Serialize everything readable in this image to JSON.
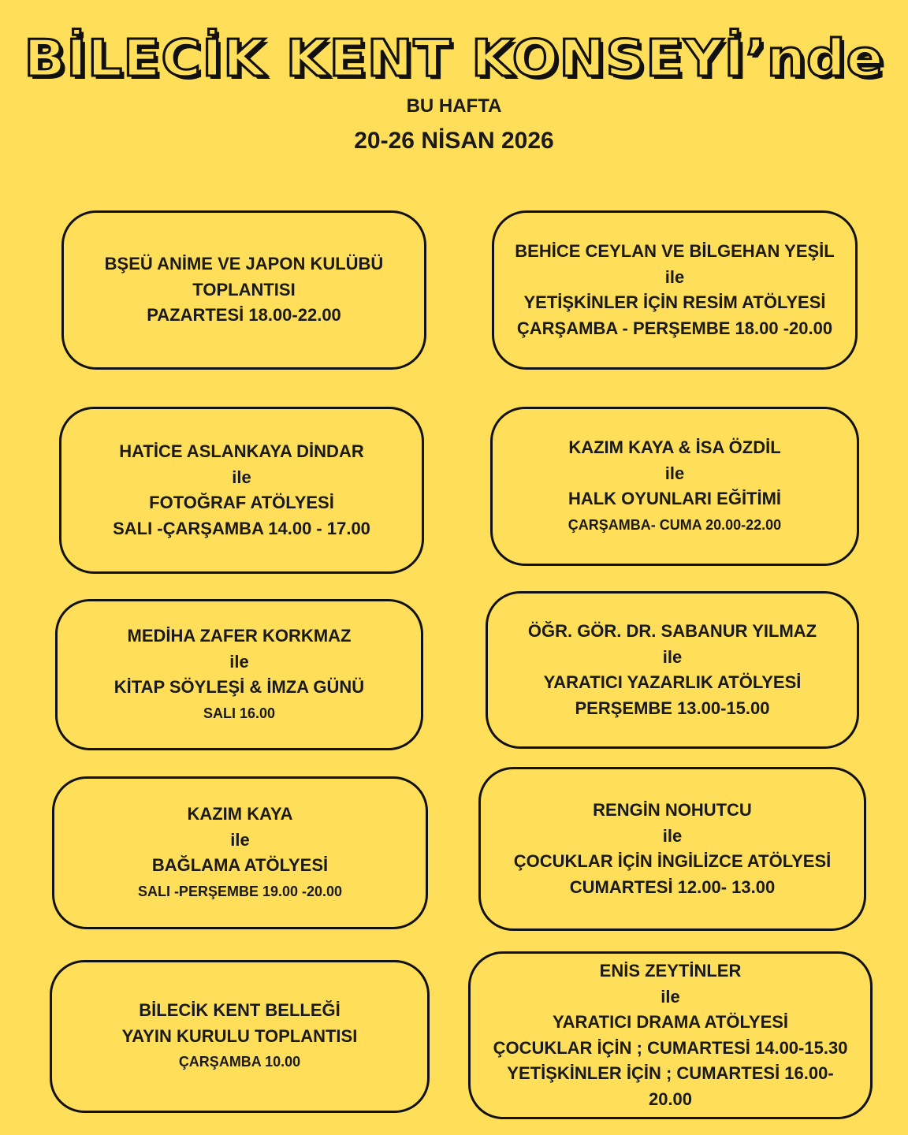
{
  "header": {
    "title": "BİLECİK KENT KONSEYİ’nde",
    "subtitle": "BU HAFTA",
    "date_range": "20-26 NİSAN 2026"
  },
  "background_color": "#FFDE59",
  "events": [
    {
      "lines": [
        "BŞEÜ ANİME VE JAPON KULÜBÜ",
        "TOPLANTISI",
        "PAZARTESİ 18.00-22.00"
      ]
    },
    {
      "lines": [
        "BEHİCE CEYLAN VE BİLGEHAN YEŞİL",
        "ile",
        "YETİŞKİNLER İÇİN RESİM ATÖLYESİ",
        "ÇARŞAMBA - PERŞEMBE 18.00 -20.00"
      ]
    },
    {
      "lines": [
        "HATİCE ASLANKAYA DİNDAR",
        "ile",
        "FOTOĞRAF ATÖLYESİ",
        "SALI -ÇARŞAMBA  14.00 - 17.00"
      ]
    },
    {
      "lines": [
        "KAZIM KAYA & İSA ÖZDİL",
        "ile",
        "HALK OYUNLARI EĞİTİMİ",
        "ÇARŞAMBA- CUMA  20.00-22.00"
      ]
    },
    {
      "lines": [
        "MEDİHA ZAFER KORKMAZ",
        "ile",
        "KİTAP SÖYLEŞİ & İMZA GÜNÜ",
        "SALI 16.00"
      ]
    },
    {
      "lines": [
        "ÖĞR. GÖR. DR. SABANUR YILMAZ",
        "ile",
        "YARATICI YAZARLIK ATÖLYESİ",
        "PERŞEMBE  13.00-15.00"
      ]
    },
    {
      "lines": [
        "KAZIM KAYA",
        "ile",
        "BAĞLAMA ATÖLYESİ",
        "SALI -PERŞEMBE 19.00 -20.00"
      ]
    },
    {
      "lines": [
        "RENGİN NOHUTCU",
        "ile",
        "ÇOCUKLAR İÇİN İNGİLİZCE ATÖLYESİ",
        "CUMARTESİ 12.00- 13.00"
      ]
    },
    {
      "lines": [
        "BİLECİK KENT BELLEĞİ",
        "YAYIN KURULU TOPLANTISI",
        "ÇARŞAMBA 10.00"
      ]
    },
    {
      "lines": [
        "ENİS ZEYTİNLER",
        "ile",
        "YARATICI DRAMA  ATÖLYESİ",
        "ÇOCUKLAR İÇİN ;  CUMARTESİ 14.00-15.30",
        "YETİŞKİNLER İÇİN ; CUMARTESİ 16.00-",
        "20.00"
      ]
    }
  ]
}
